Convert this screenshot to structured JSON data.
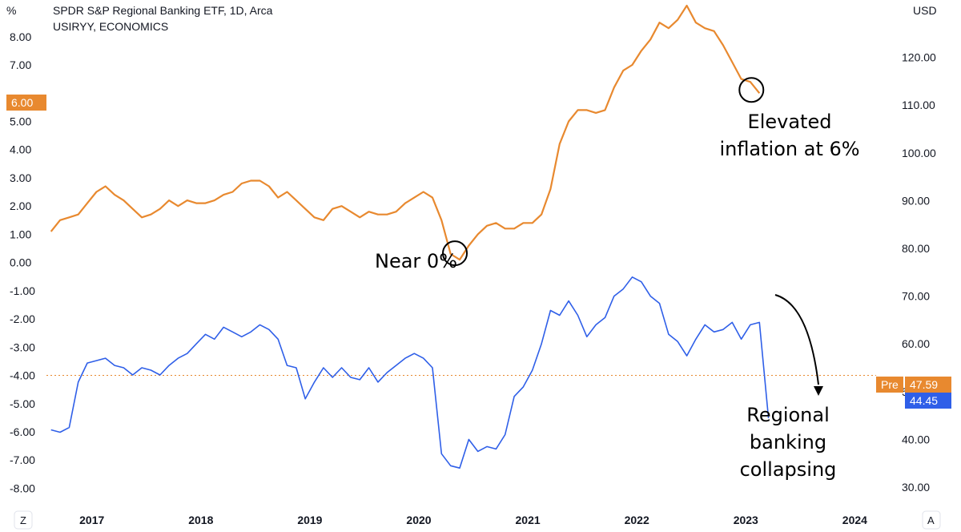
{
  "header": {
    "title": "SPDR S&P Regional Banking ETF, 1D, Arca",
    "subtitle": "USIRYY, ECONOMICS",
    "left_unit": "%",
    "right_unit": "USD"
  },
  "corner_buttons": {
    "left": "Z",
    "right": "A"
  },
  "chart_data": {
    "type": "line",
    "grid": false,
    "x_ticks": [
      "2017",
      "2018",
      "2019",
      "2020",
      "2021",
      "2022",
      "2023",
      "2024"
    ],
    "left_axis": {
      "label": "%",
      "ticks": [
        "8.00",
        "7.00",
        "6.00",
        "5.00",
        "4.00",
        "3.00",
        "2.00",
        "1.00",
        "0.00",
        "-1.00",
        "-2.00",
        "-3.00",
        "-4.00",
        "-5.00",
        "-6.00",
        "-7.00",
        "-8.00"
      ],
      "range": [
        -8.3,
        9.3
      ]
    },
    "right_axis": {
      "label": "USD",
      "ticks": [
        "120.00",
        "110.00",
        "100.00",
        "90.00",
        "80.00",
        "70.00",
        "60.00",
        "50.00",
        "40.00",
        "30.00"
      ],
      "range": [
        28.0,
        132.0
      ]
    },
    "series": [
      {
        "name": "USIRYY, ECONOMICS",
        "axis": "left",
        "color": "#e8892f",
        "points": [
          [
            "2016-08",
            1.1
          ],
          [
            "2016-09",
            1.5
          ],
          [
            "2016-10",
            1.6
          ],
          [
            "2016-11",
            1.7
          ],
          [
            "2016-12",
            2.1
          ],
          [
            "2017-01",
            2.5
          ],
          [
            "2017-02",
            2.7
          ],
          [
            "2017-03",
            2.4
          ],
          [
            "2017-04",
            2.2
          ],
          [
            "2017-05",
            1.9
          ],
          [
            "2017-06",
            1.6
          ],
          [
            "2017-07",
            1.7
          ],
          [
            "2017-08",
            1.9
          ],
          [
            "2017-09",
            2.2
          ],
          [
            "2017-10",
            2.0
          ],
          [
            "2017-11",
            2.2
          ],
          [
            "2017-12",
            2.1
          ],
          [
            "2018-01",
            2.1
          ],
          [
            "2018-02",
            2.2
          ],
          [
            "2018-03",
            2.4
          ],
          [
            "2018-04",
            2.5
          ],
          [
            "2018-05",
            2.8
          ],
          [
            "2018-06",
            2.9
          ],
          [
            "2018-07",
            2.9
          ],
          [
            "2018-08",
            2.7
          ],
          [
            "2018-09",
            2.3
          ],
          [
            "2018-10",
            2.5
          ],
          [
            "2018-11",
            2.2
          ],
          [
            "2018-12",
            1.9
          ],
          [
            "2019-01",
            1.6
          ],
          [
            "2019-02",
            1.5
          ],
          [
            "2019-03",
            1.9
          ],
          [
            "2019-04",
            2.0
          ],
          [
            "2019-05",
            1.8
          ],
          [
            "2019-06",
            1.6
          ],
          [
            "2019-07",
            1.8
          ],
          [
            "2019-08",
            1.7
          ],
          [
            "2019-09",
            1.7
          ],
          [
            "2019-10",
            1.8
          ],
          [
            "2019-11",
            2.1
          ],
          [
            "2019-12",
            2.3
          ],
          [
            "2020-01",
            2.5
          ],
          [
            "2020-02",
            2.3
          ],
          [
            "2020-03",
            1.5
          ],
          [
            "2020-04",
            0.3
          ],
          [
            "2020-05",
            0.1
          ],
          [
            "2020-06",
            0.6
          ],
          [
            "2020-07",
            1.0
          ],
          [
            "2020-08",
            1.3
          ],
          [
            "2020-09",
            1.4
          ],
          [
            "2020-10",
            1.2
          ],
          [
            "2020-11",
            1.2
          ],
          [
            "2020-12",
            1.4
          ],
          [
            "2021-01",
            1.4
          ],
          [
            "2021-02",
            1.7
          ],
          [
            "2021-03",
            2.6
          ],
          [
            "2021-04",
            4.2
          ],
          [
            "2021-05",
            5.0
          ],
          [
            "2021-06",
            5.4
          ],
          [
            "2021-07",
            5.4
          ],
          [
            "2021-08",
            5.3
          ],
          [
            "2021-09",
            5.4
          ],
          [
            "2021-10",
            6.2
          ],
          [
            "2021-11",
            6.8
          ],
          [
            "2021-12",
            7.0
          ],
          [
            "2022-01",
            7.5
          ],
          [
            "2022-02",
            7.9
          ],
          [
            "2022-03",
            8.5
          ],
          [
            "2022-04",
            8.3
          ],
          [
            "2022-05",
            8.6
          ],
          [
            "2022-06",
            9.1
          ],
          [
            "2022-07",
            8.5
          ],
          [
            "2022-08",
            8.3
          ],
          [
            "2022-09",
            8.2
          ],
          [
            "2022-10",
            7.7
          ],
          [
            "2022-11",
            7.1
          ],
          [
            "2022-12",
            6.5
          ],
          [
            "2023-01",
            6.4
          ],
          [
            "2023-02",
            6.0
          ]
        ]
      },
      {
        "name": "SPDR S&P Regional Banking ETF",
        "axis": "right",
        "color": "#2f5fe8",
        "points": [
          [
            "2016-08",
            42.0
          ],
          [
            "2016-09",
            41.5
          ],
          [
            "2016-10",
            42.5
          ],
          [
            "2016-11",
            52.0
          ],
          [
            "2016-12",
            56.0
          ],
          [
            "2017-01",
            56.5
          ],
          [
            "2017-02",
            57.0
          ],
          [
            "2017-03",
            55.5
          ],
          [
            "2017-04",
            55.0
          ],
          [
            "2017-05",
            53.5
          ],
          [
            "2017-06",
            55.0
          ],
          [
            "2017-07",
            54.5
          ],
          [
            "2017-08",
            53.5
          ],
          [
            "2017-09",
            55.5
          ],
          [
            "2017-10",
            57.0
          ],
          [
            "2017-11",
            58.0
          ],
          [
            "2017-12",
            60.0
          ],
          [
            "2018-01",
            62.0
          ],
          [
            "2018-02",
            61.0
          ],
          [
            "2018-03",
            63.5
          ],
          [
            "2018-04",
            62.5
          ],
          [
            "2018-05",
            61.5
          ],
          [
            "2018-06",
            62.5
          ],
          [
            "2018-07",
            64.0
          ],
          [
            "2018-08",
            63.0
          ],
          [
            "2018-09",
            61.0
          ],
          [
            "2018-10",
            55.5
          ],
          [
            "2018-11",
            55.0
          ],
          [
            "2018-12",
            48.5
          ],
          [
            "2019-01",
            52.0
          ],
          [
            "2019-02",
            55.0
          ],
          [
            "2019-03",
            53.0
          ],
          [
            "2019-04",
            55.0
          ],
          [
            "2019-05",
            53.0
          ],
          [
            "2019-06",
            52.5
          ],
          [
            "2019-07",
            55.0
          ],
          [
            "2019-08",
            52.0
          ],
          [
            "2019-09",
            54.0
          ],
          [
            "2019-10",
            55.5
          ],
          [
            "2019-11",
            57.0
          ],
          [
            "2019-12",
            58.0
          ],
          [
            "2020-01",
            57.0
          ],
          [
            "2020-02",
            55.0
          ],
          [
            "2020-03",
            37.0
          ],
          [
            "2020-04",
            34.5
          ],
          [
            "2020-05",
            34.0
          ],
          [
            "2020-06",
            40.0
          ],
          [
            "2020-07",
            37.5
          ],
          [
            "2020-08",
            38.5
          ],
          [
            "2020-09",
            38.0
          ],
          [
            "2020-10",
            41.0
          ],
          [
            "2020-11",
            49.0
          ],
          [
            "2020-12",
            51.0
          ],
          [
            "2021-01",
            54.5
          ],
          [
            "2021-02",
            60.0
          ],
          [
            "2021-03",
            67.0
          ],
          [
            "2021-04",
            66.0
          ],
          [
            "2021-05",
            69.0
          ],
          [
            "2021-06",
            66.0
          ],
          [
            "2021-07",
            61.5
          ],
          [
            "2021-08",
            64.0
          ],
          [
            "2021-09",
            65.5
          ],
          [
            "2021-10",
            70.0
          ],
          [
            "2021-11",
            71.5
          ],
          [
            "2021-12",
            74.0
          ],
          [
            "2022-01",
            73.0
          ],
          [
            "2022-02",
            70.0
          ],
          [
            "2022-03",
            68.5
          ],
          [
            "2022-04",
            62.0
          ],
          [
            "2022-05",
            60.5
          ],
          [
            "2022-06",
            57.5
          ],
          [
            "2022-07",
            61.0
          ],
          [
            "2022-08",
            64.0
          ],
          [
            "2022-09",
            62.5
          ],
          [
            "2022-10",
            63.0
          ],
          [
            "2022-11",
            64.5
          ],
          [
            "2022-12",
            61.0
          ],
          [
            "2023-01",
            64.0
          ],
          [
            "2023-02",
            64.5
          ],
          [
            "2023-03",
            44.45
          ]
        ]
      }
    ],
    "reference_line": {
      "value": -4.0,
      "axis": "left",
      "color": "#e8892f",
      "style": "dotted"
    },
    "current_values": {
      "left_badge": "6.00",
      "right_prefix": "Pre",
      "right_pre_value": "47.59",
      "right_last_value": "44.45"
    },
    "annotations": [
      {
        "text": "Near 0%",
        "target_x": "2020-05",
        "target_y": 0.1,
        "position": "left"
      },
      {
        "text": "Elevated inflation at 6%",
        "line1": "Elevated",
        "line2": "inflation at 6%",
        "target_x": "2023-02",
        "target_y": 6.0,
        "position": "below"
      },
      {
        "text": "Regional banking collapsing",
        "line1": "Regional",
        "line2": "banking",
        "line3": "collapsing",
        "position": "below-right"
      }
    ]
  }
}
